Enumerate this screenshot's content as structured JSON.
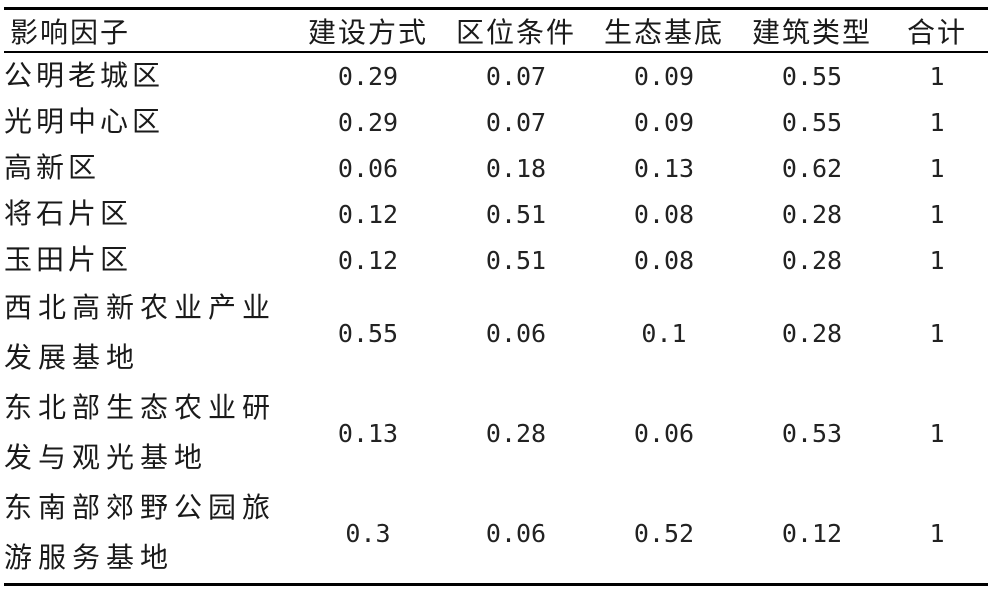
{
  "table": {
    "headers": [
      "影响因子",
      "建设方式",
      "区位条件",
      "生态基底",
      "建筑类型",
      "合计"
    ],
    "rows": [
      {
        "factor": "公明老城区",
        "values": [
          "0.29",
          "0.07",
          "0.09",
          "0.55",
          "1"
        ]
      },
      {
        "factor": "光明中心区",
        "values": [
          "0.29",
          "0.07",
          "0.09",
          "0.55",
          "1"
        ]
      },
      {
        "factor": "高新区",
        "values": [
          "0.06",
          "0.18",
          "0.13",
          "0.62",
          "1"
        ]
      },
      {
        "factor": "将石片区",
        "values": [
          "0.12",
          "0.51",
          "0.08",
          "0.28",
          "1"
        ]
      },
      {
        "factor": "玉田片区",
        "values": [
          "0.12",
          "0.51",
          "0.08",
          "0.28",
          "1"
        ]
      },
      {
        "factor": "西北高新农业产业发展基地",
        "values": [
          "0.55",
          "0.06",
          "0.1",
          "0.28",
          "1"
        ]
      },
      {
        "factor": "东北部生态农业研发与观光基地",
        "values": [
          "0.13",
          "0.28",
          "0.06",
          "0.53",
          "1"
        ]
      },
      {
        "factor": "东南部郊野公园旅游服务基地",
        "values": [
          "0.3",
          "0.06",
          "0.52",
          "0.12",
          "1"
        ]
      }
    ]
  }
}
